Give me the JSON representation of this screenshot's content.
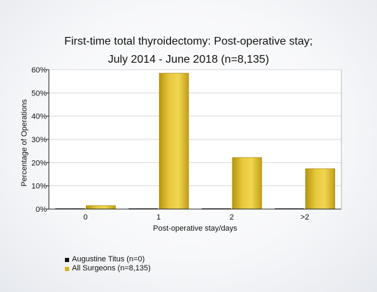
{
  "chart_data": {
    "type": "bar",
    "title_line1": "First-time total thyroidectomy: Post-operative stay;",
    "title_line2": "July 2014 - June 2018 (n=8,135)",
    "xlabel": "Post-operative stay/days",
    "ylabel": "Percentage of Operations",
    "categories": [
      "0",
      "1",
      "2",
      ">2"
    ],
    "ylim": [
      0,
      60
    ],
    "yticks": [
      0,
      10,
      20,
      30,
      40,
      50,
      60
    ],
    "ytick_labels": [
      "0%",
      "10%",
      "20%",
      "30%",
      "40%",
      "50%",
      "60%"
    ],
    "grid": true,
    "legend_position": "bottom-left",
    "series": [
      {
        "name": "Augustine Titus (n=0)",
        "values": [
          0,
          0,
          0,
          0
        ],
        "color": "#111111"
      },
      {
        "name": "All Surgeons (n=8,135)",
        "values": [
          1.5,
          58.5,
          22.2,
          17.4
        ],
        "color": "#d4b21c"
      }
    ]
  }
}
